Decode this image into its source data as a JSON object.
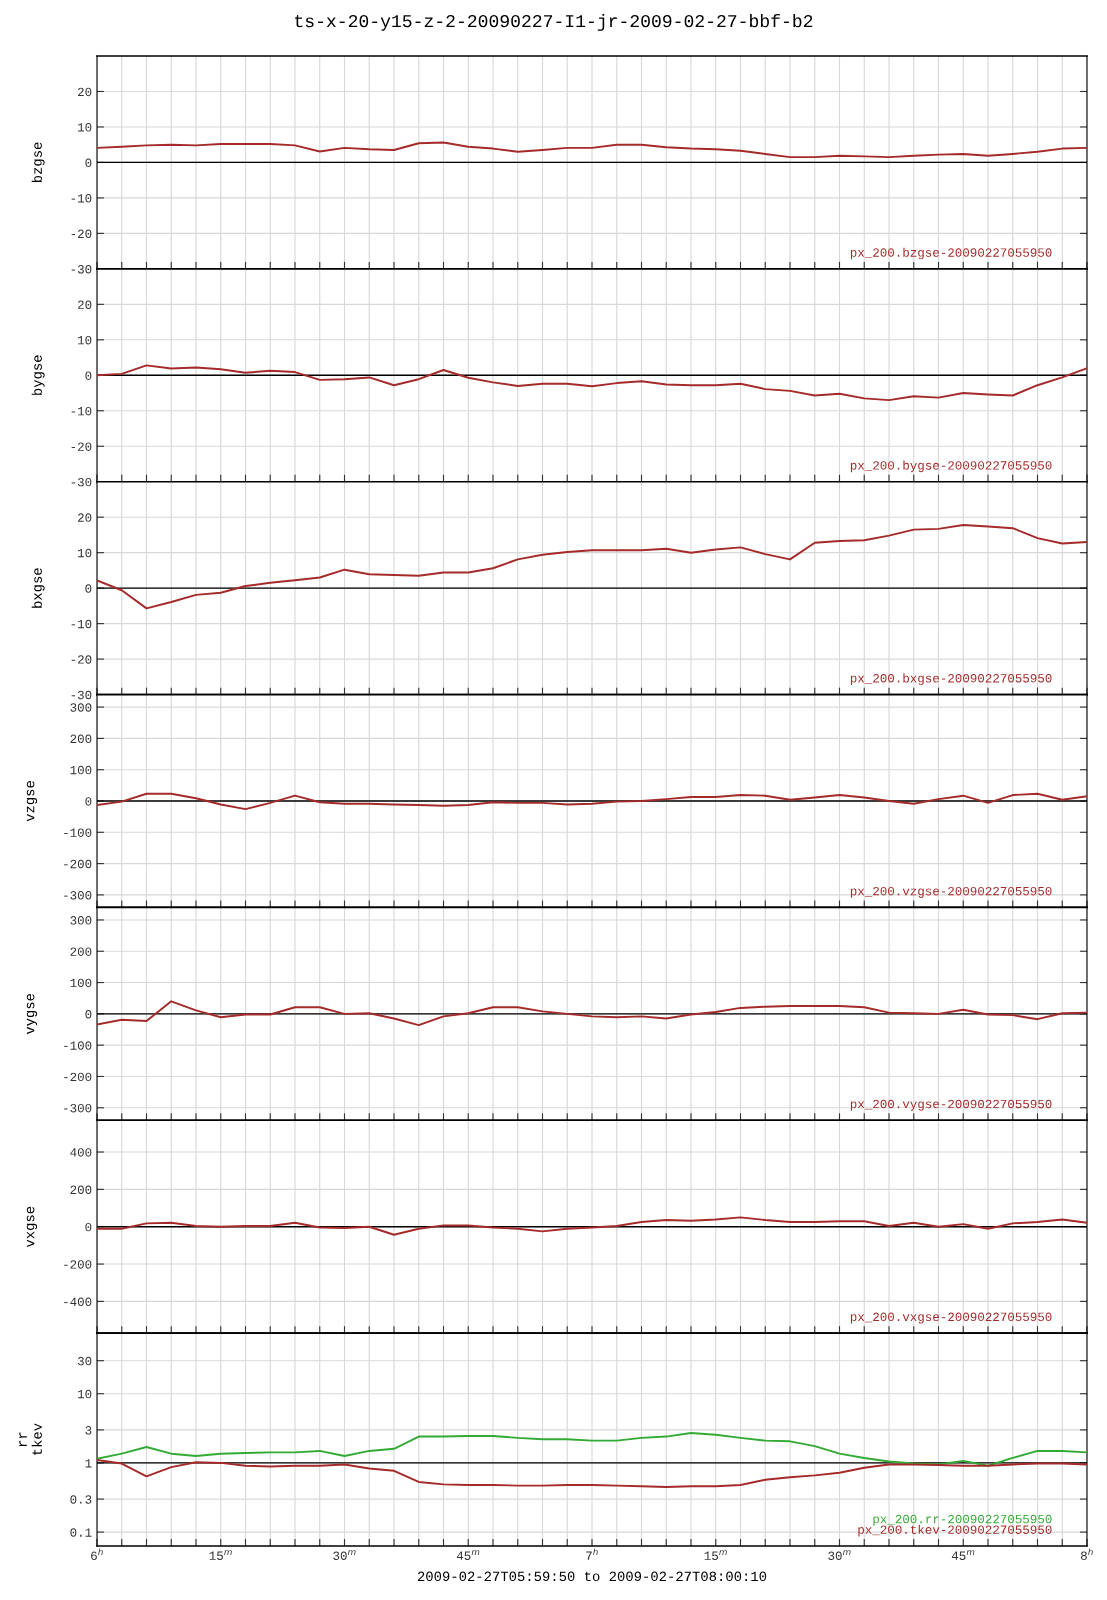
{
  "chart_data": [
    {
      "type": "line",
      "title": "ts-x-20-y15-z-2-20090227-I1-jr-2009-02-27-bbf-b2",
      "ylabel": "bzgse",
      "tick_labels": "y",
      "grid": true,
      "x": [
        "2009-02-27T06:00",
        "2009-02-27T06:03",
        "2009-02-27T06:06",
        "2009-02-27T06:09",
        "2009-02-27T06:12",
        "2009-02-27T06:15",
        "2009-02-27T06:18",
        "2009-02-27T06:21",
        "2009-02-27T06:24",
        "2009-02-27T06:27",
        "2009-02-27T06:30",
        "2009-02-27T06:33",
        "2009-02-27T06:36",
        "2009-02-27T06:39",
        "2009-02-27T06:42",
        "2009-02-27T06:45",
        "2009-02-27T06:48",
        "2009-02-27T06:51",
        "2009-02-27T06:54",
        "2009-02-27T06:57",
        "2009-02-27T07:00",
        "2009-02-27T07:03",
        "2009-02-27T07:06",
        "2009-02-27T07:09",
        "2009-02-27T07:12",
        "2009-02-27T07:15",
        "2009-02-27T07:18",
        "2009-02-27T07:21",
        "2009-02-27T07:24",
        "2009-02-27T07:27",
        "2009-02-27T07:30",
        "2009-02-27T07:33",
        "2009-02-27T07:36",
        "2009-02-27T07:39",
        "2009-02-27T07:42",
        "2009-02-27T07:45",
        "2009-02-27T07:48",
        "2009-02-27T07:51",
        "2009-02-27T07:54",
        "2009-02-27T07:57",
        "2009-02-27T08:00"
      ],
      "xlim": [
        "2009-02-27T06:00",
        "2009-02-27T08:00"
      ],
      "xticks": [
        "2009-02-27T06:00",
        "2009-02-27T06:03",
        "2009-02-27T06:06",
        "2009-02-27T06:09",
        "2009-02-27T06:12",
        "2009-02-27T06:15",
        "2009-02-27T06:18",
        "2009-02-27T06:21",
        "2009-02-27T06:24",
        "2009-02-27T06:27",
        "2009-02-27T06:30",
        "2009-02-27T06:33",
        "2009-02-27T06:36",
        "2009-02-27T06:39",
        "2009-02-27T06:42",
        "2009-02-27T06:45",
        "2009-02-27T06:48",
        "2009-02-27T06:51",
        "2009-02-27T06:54",
        "2009-02-27T06:57",
        "2009-02-27T07:00",
        "2009-02-27T07:03",
        "2009-02-27T07:06",
        "2009-02-27T07:09",
        "2009-02-27T07:12",
        "2009-02-27T07:15",
        "2009-02-27T07:18",
        "2009-02-27T07:21",
        "2009-02-27T07:24",
        "2009-02-27T07:27",
        "2009-02-27T07:30",
        "2009-02-27T07:33",
        "2009-02-27T07:36",
        "2009-02-27T07:39",
        "2009-02-27T07:42",
        "2009-02-27T07:45",
        "2009-02-27T07:48",
        "2009-02-27T07:51",
        "2009-02-27T07:54",
        "2009-02-27T07:57",
        "2009-02-27T08:00"
      ],
      "ylim": [
        -30,
        30
      ],
      "yticks": [
        -30,
        -20,
        -10,
        0,
        10,
        20
      ],
      "ref_lines": [
        {
          "axis": "y",
          "value": 0,
          "color": "#000000"
        }
      ],
      "series": [
        {
          "name": "px_200.bzgse-20090227055950",
          "color": "#a52a2a",
          "values": [
            4.1,
            4.4,
            4.8,
            5.0,
            4.8,
            5.2,
            5.2,
            5.2,
            4.8,
            3.1,
            4.1,
            3.7,
            3.5,
            5.4,
            5.6,
            4.4,
            3.9,
            3.0,
            3.5,
            4.1,
            4.1,
            5.0,
            5.0,
            4.3,
            3.9,
            3.7,
            3.3,
            2.4,
            1.5,
            1.5,
            1.9,
            1.7,
            1.5,
            1.9,
            2.2,
            2.4,
            1.9,
            2.4,
            3.0,
            3.9,
            4.1
          ]
        }
      ]
    },
    {
      "type": "line",
      "ylabel": "bygse",
      "tick_labels": "y",
      "grid": true,
      "x": [
        "2009-02-27T06:00",
        "2009-02-27T06:03",
        "2009-02-27T06:06",
        "2009-02-27T06:09",
        "2009-02-27T06:12",
        "2009-02-27T06:15",
        "2009-02-27T06:18",
        "2009-02-27T06:21",
        "2009-02-27T06:24",
        "2009-02-27T06:27",
        "2009-02-27T06:30",
        "2009-02-27T06:33",
        "2009-02-27T06:36",
        "2009-02-27T06:39",
        "2009-02-27T06:42",
        "2009-02-27T06:45",
        "2009-02-27T06:48",
        "2009-02-27T06:51",
        "2009-02-27T06:54",
        "2009-02-27T06:57",
        "2009-02-27T07:00",
        "2009-02-27T07:03",
        "2009-02-27T07:06",
        "2009-02-27T07:09",
        "2009-02-27T07:12",
        "2009-02-27T07:15",
        "2009-02-27T07:18",
        "2009-02-27T07:21",
        "2009-02-27T07:24",
        "2009-02-27T07:27",
        "2009-02-27T07:30",
        "2009-02-27T07:33",
        "2009-02-27T07:36",
        "2009-02-27T07:39",
        "2009-02-27T07:42",
        "2009-02-27T07:45",
        "2009-02-27T07:48",
        "2009-02-27T07:51",
        "2009-02-27T07:54",
        "2009-02-27T07:57",
        "2009-02-27T08:00"
      ],
      "xlim": [
        "2009-02-27T06:00",
        "2009-02-27T08:00"
      ],
      "xticks": [
        "2009-02-27T06:00",
        "2009-02-27T06:03",
        "2009-02-27T06:06",
        "2009-02-27T06:09",
        "2009-02-27T06:12",
        "2009-02-27T06:15",
        "2009-02-27T06:18",
        "2009-02-27T06:21",
        "2009-02-27T06:24",
        "2009-02-27T06:27",
        "2009-02-27T06:30",
        "2009-02-27T06:33",
        "2009-02-27T06:36",
        "2009-02-27T06:39",
        "2009-02-27T06:42",
        "2009-02-27T06:45",
        "2009-02-27T06:48",
        "2009-02-27T06:51",
        "2009-02-27T06:54",
        "2009-02-27T06:57",
        "2009-02-27T07:00",
        "2009-02-27T07:03",
        "2009-02-27T07:06",
        "2009-02-27T07:09",
        "2009-02-27T07:12",
        "2009-02-27T07:15",
        "2009-02-27T07:18",
        "2009-02-27T07:21",
        "2009-02-27T07:24",
        "2009-02-27T07:27",
        "2009-02-27T07:30",
        "2009-02-27T07:33",
        "2009-02-27T07:36",
        "2009-02-27T07:39",
        "2009-02-27T07:42",
        "2009-02-27T07:45",
        "2009-02-27T07:48",
        "2009-02-27T07:51",
        "2009-02-27T07:54",
        "2009-02-27T07:57",
        "2009-02-27T08:00"
      ],
      "ylim": [
        -30,
        30
      ],
      "yticks": [
        -30,
        -20,
        -10,
        0,
        10,
        20
      ],
      "ref_lines": [
        {
          "axis": "y",
          "value": 0,
          "color": "#000000"
        }
      ],
      "series": [
        {
          "name": "px_200.bygse-20090227055950",
          "color": "#a52a2a",
          "values": [
            0,
            0.4,
            2.8,
            1.9,
            2.2,
            1.7,
            0.7,
            1.3,
            0.9,
            -1.3,
            -1.1,
            -0.6,
            -2.8,
            -1.1,
            1.5,
            -0.7,
            -2.0,
            -3.0,
            -2.4,
            -2.4,
            -3.1,
            -2.2,
            -1.7,
            -2.6,
            -2.8,
            -2.8,
            -2.4,
            -3.9,
            -4.4,
            -5.7,
            -5.2,
            -6.5,
            -7.0,
            -5.9,
            -6.3,
            -5.0,
            -5.4,
            -5.7,
            -2.8,
            -0.6,
            2.0
          ]
        }
      ]
    },
    {
      "type": "line",
      "ylabel": "bxgse",
      "tick_labels": "y",
      "grid": true,
      "x": [
        "2009-02-27T06:00",
        "2009-02-27T06:03",
        "2009-02-27T06:06",
        "2009-02-27T06:09",
        "2009-02-27T06:12",
        "2009-02-27T06:15",
        "2009-02-27T06:18",
        "2009-02-27T06:21",
        "2009-02-27T06:24",
        "2009-02-27T06:27",
        "2009-02-27T06:30",
        "2009-02-27T06:33",
        "2009-02-27T06:36",
        "2009-02-27T06:39",
        "2009-02-27T06:42",
        "2009-02-27T06:45",
        "2009-02-27T06:48",
        "2009-02-27T06:51",
        "2009-02-27T06:54",
        "2009-02-27T06:57",
        "2009-02-27T07:00",
        "2009-02-27T07:03",
        "2009-02-27T07:06",
        "2009-02-27T07:09",
        "2009-02-27T07:12",
        "2009-02-27T07:15",
        "2009-02-27T07:18",
        "2009-02-27T07:21",
        "2009-02-27T07:24",
        "2009-02-27T07:27",
        "2009-02-27T07:30",
        "2009-02-27T07:33",
        "2009-02-27T07:36",
        "2009-02-27T07:39",
        "2009-02-27T07:42",
        "2009-02-27T07:45",
        "2009-02-27T07:48",
        "2009-02-27T07:51",
        "2009-02-27T07:54",
        "2009-02-27T07:57",
        "2009-02-27T08:00"
      ],
      "xlim": [
        "2009-02-27T06:00",
        "2009-02-27T08:00"
      ],
      "xticks": [
        "2009-02-27T06:00",
        "2009-02-27T06:03",
        "2009-02-27T06:06",
        "2009-02-27T06:09",
        "2009-02-27T06:12",
        "2009-02-27T06:15",
        "2009-02-27T06:18",
        "2009-02-27T06:21",
        "2009-02-27T06:24",
        "2009-02-27T06:27",
        "2009-02-27T06:30",
        "2009-02-27T06:33",
        "2009-02-27T06:36",
        "2009-02-27T06:39",
        "2009-02-27T06:42",
        "2009-02-27T06:45",
        "2009-02-27T06:48",
        "2009-02-27T06:51",
        "2009-02-27T06:54",
        "2009-02-27T06:57",
        "2009-02-27T07:00",
        "2009-02-27T07:03",
        "2009-02-27T07:06",
        "2009-02-27T07:09",
        "2009-02-27T07:12",
        "2009-02-27T07:15",
        "2009-02-27T07:18",
        "2009-02-27T07:21",
        "2009-02-27T07:24",
        "2009-02-27T07:27",
        "2009-02-27T07:30",
        "2009-02-27T07:33",
        "2009-02-27T07:36",
        "2009-02-27T07:39",
        "2009-02-27T07:42",
        "2009-02-27T07:45",
        "2009-02-27T07:48",
        "2009-02-27T07:51",
        "2009-02-27T07:54",
        "2009-02-27T07:57",
        "2009-02-27T08:00"
      ],
      "ylim": [
        -30,
        30
      ],
      "yticks": [
        -30,
        -20,
        -10,
        0,
        10,
        20
      ],
      "ref_lines": [
        {
          "axis": "y",
          "value": 0,
          "color": "#000000"
        }
      ],
      "series": [
        {
          "name": "px_200.bxgse-20090227055950",
          "color": "#a52a2a",
          "values": [
            2.2,
            -0.6,
            -5.7,
            -3.9,
            -1.9,
            -1.3,
            0.6,
            1.5,
            2.2,
            3.0,
            5.2,
            3.9,
            3.7,
            3.5,
            4.4,
            4.4,
            5.6,
            8.1,
            9.4,
            10.2,
            10.7,
            10.7,
            10.7,
            11.1,
            10.0,
            10.9,
            11.5,
            9.6,
            8.1,
            12.8,
            13.3,
            13.5,
            14.8,
            16.5,
            16.7,
            17.8,
            17.4,
            16.9,
            14.1,
            12.6,
            13.0
          ]
        }
      ]
    },
    {
      "type": "line",
      "ylabel": "vzgse",
      "tick_labels": "y",
      "grid": true,
      "x": [
        "2009-02-27T06:00",
        "2009-02-27T06:03",
        "2009-02-27T06:06",
        "2009-02-27T06:09",
        "2009-02-27T06:12",
        "2009-02-27T06:15",
        "2009-02-27T06:18",
        "2009-02-27T06:21",
        "2009-02-27T06:24",
        "2009-02-27T06:27",
        "2009-02-27T06:30",
        "2009-02-27T06:33",
        "2009-02-27T06:36",
        "2009-02-27T06:39",
        "2009-02-27T06:42",
        "2009-02-27T06:45",
        "2009-02-27T06:48",
        "2009-02-27T06:51",
        "2009-02-27T06:54",
        "2009-02-27T06:57",
        "2009-02-27T07:00",
        "2009-02-27T07:03",
        "2009-02-27T07:06",
        "2009-02-27T07:09",
        "2009-02-27T07:12",
        "2009-02-27T07:15",
        "2009-02-27T07:18",
        "2009-02-27T07:21",
        "2009-02-27T07:24",
        "2009-02-27T07:27",
        "2009-02-27T07:30",
        "2009-02-27T07:33",
        "2009-02-27T07:36",
        "2009-02-27T07:39",
        "2009-02-27T07:42",
        "2009-02-27T07:45",
        "2009-02-27T07:48",
        "2009-02-27T07:51",
        "2009-02-27T07:54",
        "2009-02-27T07:57",
        "2009-02-27T08:00"
      ],
      "xlim": [
        "2009-02-27T06:00",
        "2009-02-27T08:00"
      ],
      "xticks": [
        "2009-02-27T06:00",
        "2009-02-27T06:03",
        "2009-02-27T06:06",
        "2009-02-27T06:09",
        "2009-02-27T06:12",
        "2009-02-27T06:15",
        "2009-02-27T06:18",
        "2009-02-27T06:21",
        "2009-02-27T06:24",
        "2009-02-27T06:27",
        "2009-02-27T06:30",
        "2009-02-27T06:33",
        "2009-02-27T06:36",
        "2009-02-27T06:39",
        "2009-02-27T06:42",
        "2009-02-27T06:45",
        "2009-02-27T06:48",
        "2009-02-27T06:51",
        "2009-02-27T06:54",
        "2009-02-27T06:57",
        "2009-02-27T07:00",
        "2009-02-27T07:03",
        "2009-02-27T07:06",
        "2009-02-27T07:09",
        "2009-02-27T07:12",
        "2009-02-27T07:15",
        "2009-02-27T07:18",
        "2009-02-27T07:21",
        "2009-02-27T07:24",
        "2009-02-27T07:27",
        "2009-02-27T07:30",
        "2009-02-27T07:33",
        "2009-02-27T07:36",
        "2009-02-27T07:39",
        "2009-02-27T07:42",
        "2009-02-27T07:45",
        "2009-02-27T07:48",
        "2009-02-27T07:51",
        "2009-02-27T07:54",
        "2009-02-27T07:57",
        "2009-02-27T08:00"
      ],
      "ylim": [
        -340,
        340
      ],
      "yticks": [
        -300,
        -200,
        -100,
        0,
        100,
        200,
        300
      ],
      "ref_lines": [
        {
          "axis": "y",
          "value": 0,
          "color": "#000000"
        }
      ],
      "series": [
        {
          "name": "px_200.vzgse-20090227055950",
          "color": "#a52a2a",
          "values": [
            -13,
            -2,
            23,
            23,
            9,
            -11,
            -26,
            -6,
            17,
            -4,
            -9,
            -9,
            -11,
            -13,
            -15,
            -13,
            -4,
            -6,
            -6,
            -11,
            -9,
            -2,
            0,
            6,
            13,
            13,
            19,
            17,
            4,
            11,
            19,
            11,
            0,
            -9,
            6,
            17,
            -6,
            19,
            23,
            4,
            15
          ]
        }
      ]
    },
    {
      "type": "line",
      "ylabel": "vygse",
      "tick_labels": "y",
      "grid": true,
      "x": [
        "2009-02-27T06:00",
        "2009-02-27T06:03",
        "2009-02-27T06:06",
        "2009-02-27T06:09",
        "2009-02-27T06:12",
        "2009-02-27T06:15",
        "2009-02-27T06:18",
        "2009-02-27T06:21",
        "2009-02-27T06:24",
        "2009-02-27T06:27",
        "2009-02-27T06:30",
        "2009-02-27T06:33",
        "2009-02-27T06:36",
        "2009-02-27T06:39",
        "2009-02-27T06:42",
        "2009-02-27T06:45",
        "2009-02-27T06:48",
        "2009-02-27T06:51",
        "2009-02-27T06:54",
        "2009-02-27T06:57",
        "2009-02-27T07:00",
        "2009-02-27T07:03",
        "2009-02-27T07:06",
        "2009-02-27T07:09",
        "2009-02-27T07:12",
        "2009-02-27T07:15",
        "2009-02-27T07:18",
        "2009-02-27T07:21",
        "2009-02-27T07:24",
        "2009-02-27T07:27",
        "2009-02-27T07:30",
        "2009-02-27T07:33",
        "2009-02-27T07:36",
        "2009-02-27T07:39",
        "2009-02-27T07:42",
        "2009-02-27T07:45",
        "2009-02-27T07:48",
        "2009-02-27T07:51",
        "2009-02-27T07:54",
        "2009-02-27T07:57",
        "2009-02-27T08:00"
      ],
      "xlim": [
        "2009-02-27T06:00",
        "2009-02-27T08:00"
      ],
      "xticks": [
        "2009-02-27T06:00",
        "2009-02-27T06:03",
        "2009-02-27T06:06",
        "2009-02-27T06:09",
        "2009-02-27T06:12",
        "2009-02-27T06:15",
        "2009-02-27T06:18",
        "2009-02-27T06:21",
        "2009-02-27T06:24",
        "2009-02-27T06:27",
        "2009-02-27T06:30",
        "2009-02-27T06:33",
        "2009-02-27T06:36",
        "2009-02-27T06:39",
        "2009-02-27T06:42",
        "2009-02-27T06:45",
        "2009-02-27T06:48",
        "2009-02-27T06:51",
        "2009-02-27T06:54",
        "2009-02-27T06:57",
        "2009-02-27T07:00",
        "2009-02-27T07:03",
        "2009-02-27T07:06",
        "2009-02-27T07:09",
        "2009-02-27T07:12",
        "2009-02-27T07:15",
        "2009-02-27T07:18",
        "2009-02-27T07:21",
        "2009-02-27T07:24",
        "2009-02-27T07:27",
        "2009-02-27T07:30",
        "2009-02-27T07:33",
        "2009-02-27T07:36",
        "2009-02-27T07:39",
        "2009-02-27T07:42",
        "2009-02-27T07:45",
        "2009-02-27T07:48",
        "2009-02-27T07:51",
        "2009-02-27T07:54",
        "2009-02-27T07:57",
        "2009-02-27T08:00"
      ],
      "ylim": [
        -340,
        340
      ],
      "yticks": [
        -300,
        -200,
        -100,
        0,
        100,
        200,
        300
      ],
      "ref_lines": [
        {
          "axis": "y",
          "value": 0,
          "color": "#000000"
        }
      ],
      "series": [
        {
          "name": "px_200.vygse-20090227055950",
          "color": "#a52a2a",
          "values": [
            -34,
            -19,
            -23,
            40,
            11,
            -11,
            -2,
            -2,
            21,
            21,
            0,
            2,
            -15,
            -36,
            -8,
            2,
            21,
            21,
            8,
            0,
            -8,
            -11,
            -8,
            -15,
            -2,
            6,
            19,
            23,
            25,
            25,
            25,
            21,
            4,
            2,
            0,
            13,
            -2,
            -4,
            -17,
            2,
            4
          ]
        }
      ]
    },
    {
      "type": "line",
      "ylabel": "vxgse",
      "tick_labels": "y",
      "grid": true,
      "x": [
        "2009-02-27T06:00",
        "2009-02-27T06:03",
        "2009-02-27T06:06",
        "2009-02-27T06:09",
        "2009-02-27T06:12",
        "2009-02-27T06:15",
        "2009-02-27T06:18",
        "2009-02-27T06:21",
        "2009-02-27T06:24",
        "2009-02-27T06:27",
        "2009-02-27T06:30",
        "2009-02-27T06:33",
        "2009-02-27T06:36",
        "2009-02-27T06:39",
        "2009-02-27T06:42",
        "2009-02-27T06:45",
        "2009-02-27T06:48",
        "2009-02-27T06:51",
        "2009-02-27T06:54",
        "2009-02-27T06:57",
        "2009-02-27T07:00",
        "2009-02-27T07:03",
        "2009-02-27T07:06",
        "2009-02-27T07:09",
        "2009-02-27T07:12",
        "2009-02-27T07:15",
        "2009-02-27T07:18",
        "2009-02-27T07:21",
        "2009-02-27T07:24",
        "2009-02-27T07:27",
        "2009-02-27T07:30",
        "2009-02-27T07:33",
        "2009-02-27T07:36",
        "2009-02-27T07:39",
        "2009-02-27T07:42",
        "2009-02-27T07:45",
        "2009-02-27T07:48",
        "2009-02-27T07:51",
        "2009-02-27T07:54",
        "2009-02-27T07:57",
        "2009-02-27T08:00"
      ],
      "xlim": [
        "2009-02-27T06:00",
        "2009-02-27T08:00"
      ],
      "xticks": [
        "2009-02-27T06:00",
        "2009-02-27T06:03",
        "2009-02-27T06:06",
        "2009-02-27T06:09",
        "2009-02-27T06:12",
        "2009-02-27T06:15",
        "2009-02-27T06:18",
        "2009-02-27T06:21",
        "2009-02-27T06:24",
        "2009-02-27T06:27",
        "2009-02-27T06:30",
        "2009-02-27T06:33",
        "2009-02-27T06:36",
        "2009-02-27T06:39",
        "2009-02-27T06:42",
        "2009-02-27T06:45",
        "2009-02-27T06:48",
        "2009-02-27T06:51",
        "2009-02-27T06:54",
        "2009-02-27T06:57",
        "2009-02-27T07:00",
        "2009-02-27T07:03",
        "2009-02-27T07:06",
        "2009-02-27T07:09",
        "2009-02-27T07:12",
        "2009-02-27T07:15",
        "2009-02-27T07:18",
        "2009-02-27T07:21",
        "2009-02-27T07:24",
        "2009-02-27T07:27",
        "2009-02-27T07:30",
        "2009-02-27T07:33",
        "2009-02-27T07:36",
        "2009-02-27T07:39",
        "2009-02-27T07:42",
        "2009-02-27T07:45",
        "2009-02-27T07:48",
        "2009-02-27T07:51",
        "2009-02-27T07:54",
        "2009-02-27T07:57",
        "2009-02-27T08:00"
      ],
      "ylim": [
        -570,
        570
      ],
      "yticks": [
        -400,
        -200,
        0,
        200,
        400
      ],
      "ref_lines": [
        {
          "axis": "y",
          "value": 0,
          "color": "#000000"
        }
      ],
      "series": [
        {
          "name": "px_200.vxgse-20090227055950",
          "color": "#a52a2a",
          "values": [
            -11,
            -11,
            18,
            21,
            4,
            0,
            4,
            4,
            21,
            -4,
            -7,
            0,
            -43,
            -11,
            7,
            7,
            -4,
            -11,
            -25,
            -11,
            -4,
            4,
            25,
            36,
            32,
            39,
            50,
            36,
            25,
            25,
            29,
            29,
            4,
            21,
            0,
            14,
            -11,
            18,
            25,
            39,
            21
          ]
        }
      ]
    },
    {
      "type": "line",
      "ylabel": "rr\ntkev",
      "xlabel": "2009-02-27T05:59:50 to 2009-02-27T08:00:10",
      "grid": true,
      "log": "y",
      "x": [
        "2009-02-27T06:00",
        "2009-02-27T06:03",
        "2009-02-27T06:06",
        "2009-02-27T06:09",
        "2009-02-27T06:12",
        "2009-02-27T06:15",
        "2009-02-27T06:18",
        "2009-02-27T06:21",
        "2009-02-27T06:24",
        "2009-02-27T06:27",
        "2009-02-27T06:30",
        "2009-02-27T06:33",
        "2009-02-27T06:36",
        "2009-02-27T06:39",
        "2009-02-27T06:42",
        "2009-02-27T06:45",
        "2009-02-27T06:48",
        "2009-02-27T06:51",
        "2009-02-27T06:54",
        "2009-02-27T06:57",
        "2009-02-27T07:00",
        "2009-02-27T07:03",
        "2009-02-27T07:06",
        "2009-02-27T07:09",
        "2009-02-27T07:12",
        "2009-02-27T07:15",
        "2009-02-27T07:18",
        "2009-02-27T07:21",
        "2009-02-27T07:24",
        "2009-02-27T07:27",
        "2009-02-27T07:30",
        "2009-02-27T07:33",
        "2009-02-27T07:36",
        "2009-02-27T07:39",
        "2009-02-27T07:42",
        "2009-02-27T07:45",
        "2009-02-27T07:48",
        "2009-02-27T07:51",
        "2009-02-27T07:54",
        "2009-02-27T07:57",
        "2009-02-27T08:00"
      ],
      "xlim": [
        "2009-02-27T06:00",
        "2009-02-27T08:00"
      ],
      "xticks": [
        {
          "value": "2009-02-27T06:00",
          "label": "6$^{h}$"
        },
        {
          "value": "2009-02-27T06:03",
          "label": null
        },
        {
          "value": "2009-02-27T06:06",
          "label": null
        },
        {
          "value": "2009-02-27T06:09",
          "label": null
        },
        {
          "value": "2009-02-27T06:12",
          "label": null
        },
        {
          "value": "2009-02-27T06:15",
          "label": "15$^{m}$"
        },
        {
          "value": "2009-02-27T06:18",
          "label": null
        },
        {
          "value": "2009-02-27T06:21",
          "label": null
        },
        {
          "value": "2009-02-27T06:24",
          "label": null
        },
        {
          "value": "2009-02-27T06:27",
          "label": null
        },
        {
          "value": "2009-02-27T06:30",
          "label": "30$^{m}$"
        },
        {
          "value": "2009-02-27T06:33",
          "label": null
        },
        {
          "value": "2009-02-27T06:36",
          "label": null
        },
        {
          "value": "2009-02-27T06:39",
          "label": null
        },
        {
          "value": "2009-02-27T06:42",
          "label": null
        },
        {
          "value": "2009-02-27T06:45",
          "label": "45$^{m}$"
        },
        {
          "value": "2009-02-27T06:48",
          "label": null
        },
        {
          "value": "2009-02-27T06:51",
          "label": null
        },
        {
          "value": "2009-02-27T06:54",
          "label": null
        },
        {
          "value": "2009-02-27T06:57",
          "label": null
        },
        {
          "value": "2009-02-27T07:00",
          "label": "7$^{h}$"
        },
        {
          "value": "2009-02-27T07:03",
          "label": null
        },
        {
          "value": "2009-02-27T07:06",
          "label": null
        },
        {
          "value": "2009-02-27T07:09",
          "label": null
        },
        {
          "value": "2009-02-27T07:12",
          "label": null
        },
        {
          "value": "2009-02-27T07:15",
          "label": "15$^{m}$"
        },
        {
          "value": "2009-02-27T07:18",
          "label": null
        },
        {
          "value": "2009-02-27T07:21",
          "label": null
        },
        {
          "value": "2009-02-27T07:24",
          "label": null
        },
        {
          "value": "2009-02-27T07:27",
          "label": null
        },
        {
          "value": "2009-02-27T07:30",
          "label": "30$^{m}$"
        },
        {
          "value": "2009-02-27T07:33",
          "label": null
        },
        {
          "value": "2009-02-27T07:36",
          "label": null
        },
        {
          "value": "2009-02-27T07:39",
          "label": null
        },
        {
          "value": "2009-02-27T07:42",
          "label": null
        },
        {
          "value": "2009-02-27T07:45",
          "label": "45$^{m}$"
        },
        {
          "value": "2009-02-27T07:48",
          "label": null
        },
        {
          "value": "2009-02-27T07:51",
          "label": null
        },
        {
          "value": "2009-02-27T07:54",
          "label": null
        },
        {
          "value": "2009-02-27T07:57",
          "label": null
        },
        {
          "value": "2009-02-27T08:00",
          "label": "8$^{h}$"
        }
      ],
      "ylim": [
        0.063,
        75
      ],
      "yticks": [
        0.1,
        0.3,
        1,
        3,
        10,
        30
      ],
      "ref_lines": [
        {
          "axis": "y",
          "value": 1,
          "color": "#000000"
        }
      ],
      "series": [
        {
          "name": "px_200.rr-20090227055950",
          "color": "#33aa33",
          "values": [
            1.15,
            1.36,
            1.7,
            1.36,
            1.26,
            1.36,
            1.39,
            1.42,
            1.42,
            1.49,
            1.26,
            1.49,
            1.6,
            2.4,
            2.4,
            2.45,
            2.45,
            2.3,
            2.2,
            2.2,
            2.1,
            2.1,
            2.3,
            2.4,
            2.7,
            2.55,
            2.3,
            2.1,
            2.05,
            1.75,
            1.36,
            1.18,
            1.05,
            0.98,
            0.95,
            1.07,
            0.91,
            1.18,
            1.49,
            1.49,
            1.42
          ]
        },
        {
          "name": "px_200.tkev-20090227055950",
          "color": "#a52a2a",
          "values": [
            1.1,
            0.98,
            0.64,
            0.87,
            1.02,
            1.0,
            0.91,
            0.89,
            0.91,
            0.91,
            0.95,
            0.83,
            0.77,
            0.53,
            0.49,
            0.48,
            0.48,
            0.47,
            0.47,
            0.48,
            0.48,
            0.47,
            0.46,
            0.45,
            0.46,
            0.46,
            0.48,
            0.57,
            0.62,
            0.66,
            0.72,
            0.85,
            0.95,
            0.95,
            0.93,
            0.91,
            0.91,
            0.95,
            0.98,
            0.98,
            0.95
          ]
        }
      ]
    }
  ]
}
